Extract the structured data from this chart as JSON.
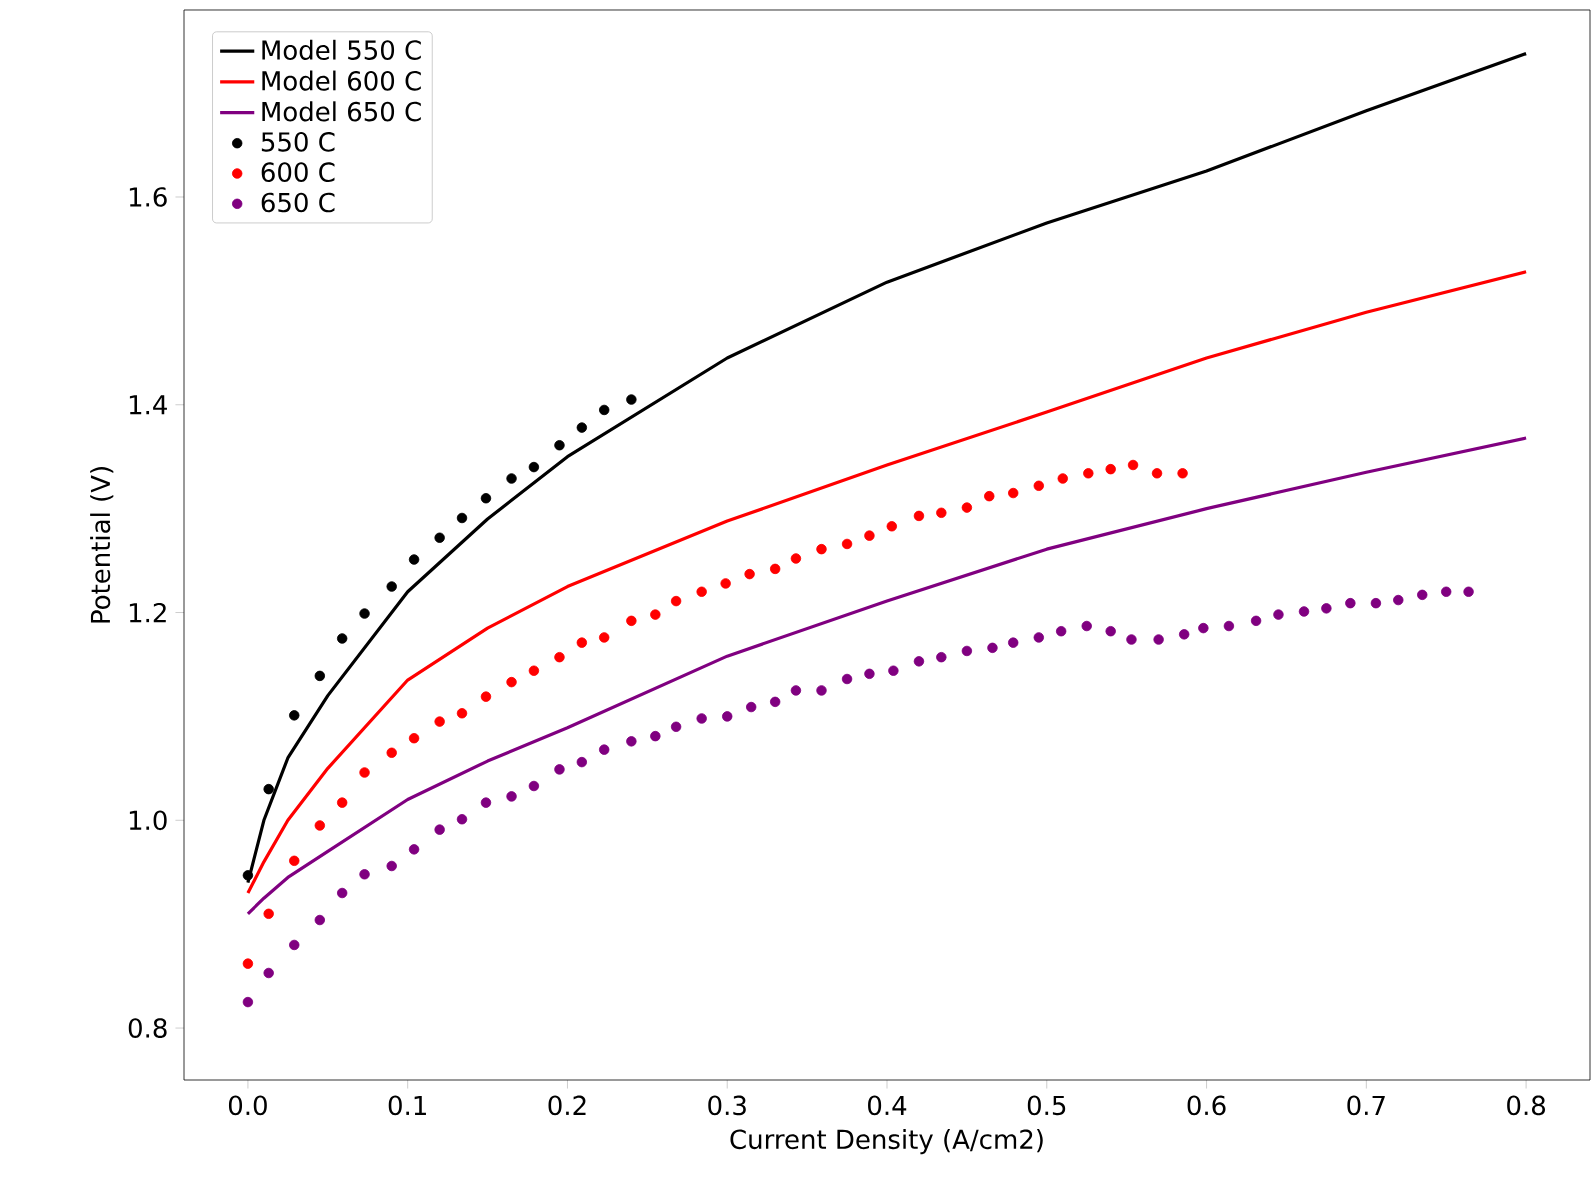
{
  "chart_data": {
    "type": "line",
    "xlabel": "Current Density (A/cm2)",
    "ylabel": "Potential (V)",
    "xlim": [
      -0.04,
      0.84
    ],
    "ylim": [
      0.75,
      1.78
    ],
    "xticks": [
      {
        "value": 0,
        "label": "0.0"
      },
      0.1,
      0.2,
      0.3,
      0.4,
      0.5,
      0.6,
      0.7,
      0.8
    ],
    "yticks": [
      {
        "value": 0.8,
        "label": "0.8"
      },
      {
        "value": 1.0,
        "label": "1.0"
      },
      1.2,
      1.4,
      1.6
    ],
    "legend": "top left",
    "grid": false,
    "series": [
      {
        "name": "Model 550 C",
        "color": "#000000",
        "marker": "none",
        "x": [
          0,
          0.01,
          0.025,
          0.05,
          0.1,
          0.15,
          0.2,
          0.3,
          0.4,
          0.5,
          0.6,
          0.7,
          0.8
        ],
        "values": [
          0.94,
          1.0,
          1.06,
          1.12,
          1.22,
          1.29,
          1.35,
          1.445,
          1.518,
          1.575,
          1.625,
          1.683,
          1.738
        ]
      },
      {
        "name": "Model 600 C",
        "color": "#ff0000",
        "marker": "none",
        "x": [
          0,
          0.01,
          0.025,
          0.05,
          0.1,
          0.15,
          0.2,
          0.3,
          0.4,
          0.5,
          0.6,
          0.7,
          0.8
        ],
        "values": [
          0.93,
          0.96,
          1.0,
          1.05,
          1.135,
          1.185,
          1.225,
          1.288,
          1.342,
          1.393,
          1.445,
          1.489,
          1.528
        ]
      },
      {
        "name": "Model 650 C",
        "color": "#800080",
        "marker": "none",
        "x": [
          0,
          0.01,
          0.025,
          0.05,
          0.1,
          0.15,
          0.2,
          0.3,
          0.4,
          0.5,
          0.6,
          0.7,
          0.8
        ],
        "values": [
          0.91,
          0.925,
          0.945,
          0.97,
          1.02,
          1.057,
          1.089,
          1.158,
          1.211,
          1.261,
          1.3,
          1.335,
          1.368
        ]
      },
      {
        "name": "550 C",
        "type": "scatter",
        "color": "#000000",
        "marker": "circle",
        "x": [
          0,
          0.013,
          0.029,
          0.045,
          0.059,
          0.073,
          0.09,
          0.104,
          0.12,
          0.134,
          0.149,
          0.165,
          0.179,
          0.195,
          0.209,
          0.223,
          0.24
        ],
        "values": [
          0.947,
          1.03,
          1.101,
          1.139,
          1.175,
          1.199,
          1.225,
          1.251,
          1.272,
          1.291,
          1.31,
          1.329,
          1.34,
          1.361,
          1.378,
          1.395,
          1.405
        ]
      },
      {
        "name": "600 C",
        "type": "scatter",
        "color": "#ff0000",
        "marker": "circle",
        "x": [
          0,
          0.013,
          0.029,
          0.045,
          0.059,
          0.073,
          0.09,
          0.104,
          0.12,
          0.134,
          0.149,
          0.165,
          0.179,
          0.195,
          0.209,
          0.223,
          0.24,
          0.255,
          0.268,
          0.284,
          0.299,
          0.314,
          0.33,
          0.343,
          0.359,
          0.375,
          0.389,
          0.403,
          0.42,
          0.434,
          0.45,
          0.464,
          0.479,
          0.495,
          0.51,
          0.526,
          0.54,
          0.554,
          0.569,
          0.585
        ],
        "values": [
          0.862,
          0.91,
          0.961,
          0.995,
          1.017,
          1.046,
          1.065,
          1.079,
          1.095,
          1.103,
          1.119,
          1.133,
          1.144,
          1.157,
          1.171,
          1.176,
          1.192,
          1.198,
          1.211,
          1.22,
          1.228,
          1.237,
          1.242,
          1.252,
          1.261,
          1.266,
          1.274,
          1.283,
          1.293,
          1.296,
          1.301,
          1.312,
          1.315,
          1.322,
          1.329,
          1.334,
          1.338,
          1.342,
          1.334,
          1.334
        ]
      },
      {
        "name": "650 C",
        "type": "scatter",
        "color": "#800080",
        "marker": "circle",
        "x": [
          0,
          0.013,
          0.029,
          0.045,
          0.059,
          0.073,
          0.09,
          0.104,
          0.12,
          0.134,
          0.149,
          0.165,
          0.179,
          0.195,
          0.209,
          0.223,
          0.24,
          0.255,
          0.268,
          0.284,
          0.3,
          0.315,
          0.33,
          0.343,
          0.359,
          0.375,
          0.389,
          0.404,
          0.42,
          0.434,
          0.45,
          0.466,
          0.479,
          0.495,
          0.509,
          0.525,
          0.54,
          0.553,
          0.57,
          0.586,
          0.598,
          0.614,
          0.631,
          0.645,
          0.661,
          0.675,
          0.69,
          0.706,
          0.72,
          0.735,
          0.75,
          0.764
        ],
        "values": [
          0.825,
          0.853,
          0.88,
          0.904,
          0.93,
          0.948,
          0.956,
          0.972,
          0.991,
          1.001,
          1.017,
          1.023,
          1.033,
          1.049,
          1.056,
          1.068,
          1.076,
          1.081,
          1.09,
          1.098,
          1.1,
          1.109,
          1.114,
          1.125,
          1.125,
          1.136,
          1.141,
          1.144,
          1.153,
          1.157,
          1.163,
          1.166,
          1.171,
          1.176,
          1.182,
          1.187,
          1.182,
          1.174,
          1.174,
          1.179,
          1.185,
          1.187,
          1.192,
          1.198,
          1.201,
          1.204,
          1.209,
          1.209,
          1.212,
          1.217,
          1.22,
          1.22
        ]
      }
    ]
  }
}
